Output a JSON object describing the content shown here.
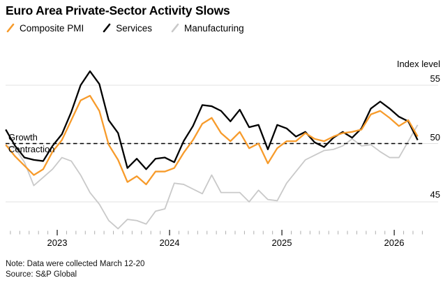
{
  "title": "Euro Area Private-Sector Activity Slows",
  "legend": [
    {
      "label": "Composite PMI",
      "color": "#F79B2B"
    },
    {
      "label": "Services",
      "color": "#000000"
    },
    {
      "label": "Manufacturing",
      "color": "#C9C9C9"
    }
  ],
  "axis": {
    "unit_label": "Index level",
    "yticks": [
      "55",
      "50",
      "45"
    ],
    "year_labels": [
      "2023",
      "2024",
      "2025",
      "2026"
    ]
  },
  "annotations": {
    "growth": "Growth",
    "contraction": "Contraction",
    "baseline_value": 50
  },
  "notes": {
    "note": "Note: Data were collected March 12-20",
    "source": "Source: S&P Global"
  },
  "chart_data": {
    "type": "line",
    "title": "Euro Area Private-Sector Activity Slows",
    "ylabel": "Index level",
    "x_frequency": "monthly",
    "x_start": "2022-07",
    "x_end": "2026-03",
    "n_points": 45,
    "ylim": [
      41,
      57
    ],
    "ytick_values": [
      45,
      50,
      55
    ],
    "baseline": 50,
    "grid": "horizontal",
    "legend_position": "top-left",
    "series": [
      {
        "name": "Composite PMI",
        "color": "#F79B2B",
        "values": [
          49.9,
          48.9,
          48.1,
          47.3,
          47.8,
          49.3,
          50.3,
          52.0,
          53.7,
          54.1,
          52.8,
          49.9,
          48.6,
          46.7,
          47.2,
          46.5,
          47.6,
          47.6,
          47.9,
          49.2,
          50.3,
          51.7,
          52.2,
          50.9,
          50.2,
          51.0,
          49.6,
          50.0,
          48.3,
          49.6,
          50.2,
          50.2,
          50.9,
          50.4,
          50.2,
          50.6,
          50.9,
          51.0,
          51.2,
          52.5,
          52.8,
          52.2,
          51.5,
          52.0,
          50.6
        ]
      },
      {
        "name": "Services",
        "color": "#000000",
        "values": [
          51.2,
          49.8,
          48.8,
          48.6,
          48.5,
          49.8,
          50.8,
          52.7,
          55.0,
          56.2,
          55.1,
          52.0,
          50.9,
          47.9,
          48.7,
          47.8,
          48.7,
          48.8,
          48.4,
          50.2,
          51.5,
          53.3,
          53.2,
          52.8,
          51.9,
          52.9,
          51.4,
          51.6,
          49.5,
          51.6,
          51.3,
          50.6,
          51.0,
          50.1,
          49.7,
          50.5,
          51.0,
          50.5,
          51.3,
          53.0,
          53.6,
          53.0,
          52.3,
          51.9,
          50.3
        ]
      },
      {
        "name": "Manufacturing",
        "color": "#C9C9C9",
        "values": [
          49.8,
          49.6,
          48.4,
          46.4,
          47.1,
          47.8,
          48.8,
          48.5,
          47.3,
          45.8,
          44.8,
          43.4,
          42.7,
          43.5,
          43.4,
          43.1,
          44.2,
          44.4,
          46.6,
          46.5,
          46.1,
          45.7,
          47.3,
          45.8,
          45.8,
          45.8,
          45.0,
          46.0,
          45.2,
          45.1,
          46.6,
          47.6,
          48.6,
          49.0,
          49.4,
          49.5,
          49.8,
          50.4,
          49.8,
          49.9,
          49.3,
          48.8,
          48.8,
          50.2,
          51.6
        ]
      }
    ]
  }
}
